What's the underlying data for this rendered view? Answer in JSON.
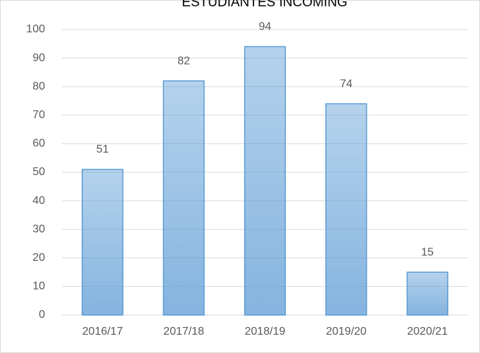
{
  "chart_data": {
    "type": "bar",
    "title": "ESTUDIANTES INCOMING",
    "categories": [
      "2016/17",
      "2017/18",
      "2018/19",
      "2019/20",
      "2020/21"
    ],
    "values": [
      51,
      82,
      94,
      74,
      15
    ],
    "color": "#5b9bd5",
    "ylim": [
      0,
      100
    ],
    "yticks": [
      0,
      10,
      20,
      30,
      40,
      50,
      60,
      70,
      80,
      90,
      100
    ],
    "grid": true
  }
}
